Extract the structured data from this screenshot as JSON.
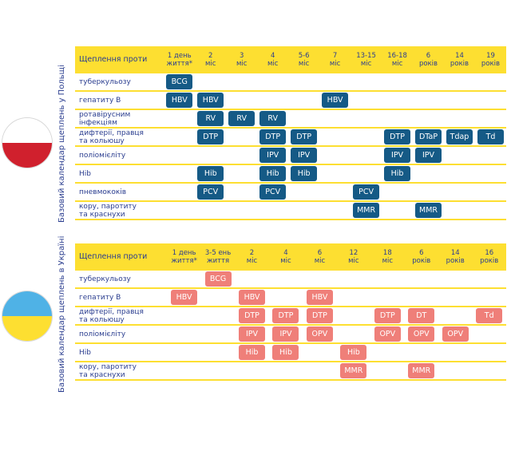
{
  "poland": {
    "side_label": "Базовий календар щеплень у Польщі",
    "flag_colors": {
      "top": "#ffffff",
      "bottom": "#d0202d"
    },
    "header_title": "Щеплення проти",
    "columns": [
      {
        "l1": "1 день",
        "l2": "життя*"
      },
      {
        "l1": "2",
        "l2": "міс"
      },
      {
        "l1": "3",
        "l2": "міс"
      },
      {
        "l1": "4",
        "l2": "міс"
      },
      {
        "l1": "5-6",
        "l2": "міс"
      },
      {
        "l1": "7",
        "l2": "міс"
      },
      {
        "l1": "13-15",
        "l2": "міс"
      },
      {
        "l1": "16-18",
        "l2": "міс"
      },
      {
        "l1": "6",
        "l2": "років"
      },
      {
        "l1": "14",
        "l2": "років"
      },
      {
        "l1": "19",
        "l2": "років"
      }
    ],
    "rows": [
      {
        "l1": "туберкульозу",
        "l2": "",
        "cells": [
          "BCG",
          "",
          "",
          "",
          "",
          "",
          "",
          "",
          "",
          "",
          ""
        ]
      },
      {
        "l1": "гепатиту В",
        "l2": "",
        "cells": [
          "HBV",
          "HBV",
          "",
          "",
          "",
          "HBV",
          "",
          "",
          "",
          "",
          ""
        ]
      },
      {
        "l1": "ротавірусним інфекціям",
        "l2": "",
        "cells": [
          "",
          "RV",
          "RV",
          "RV",
          "",
          "",
          "",
          "",
          "",
          "",
          ""
        ]
      },
      {
        "l1": "дифтерії, правця",
        "l2": "та кольюшу",
        "cells": [
          "",
          "DTP",
          "",
          "DTP",
          "DTP",
          "",
          "",
          "DTP",
          "DTaP",
          "Tdap",
          "Td"
        ]
      },
      {
        "l1": "поліомієліту",
        "l2": "",
        "cells": [
          "",
          "",
          "",
          "IPV",
          "IPV",
          "",
          "",
          "IPV",
          "IPV",
          "",
          ""
        ]
      },
      {
        "l1": "Hib",
        "l2": "",
        "cells": [
          "",
          "Hib",
          "",
          "Hib",
          "Hib",
          "",
          "",
          "Hib",
          "",
          "",
          ""
        ]
      },
      {
        "l1": "пневмококів",
        "l2": "",
        "cells": [
          "",
          "PCV",
          "",
          "PCV",
          "",
          "",
          "PCV",
          "",
          "",
          "",
          ""
        ]
      },
      {
        "l1": "кору, паротиту",
        "l2": "та краснухи",
        "cells": [
          "",
          "",
          "",
          "",
          "",
          "",
          "MMR",
          "",
          "MMR",
          "",
          ""
        ]
      }
    ]
  },
  "ukraine": {
    "side_label": "Базовий календар щеплень в Україні",
    "flag_colors": {
      "top": "#4fb2e6",
      "bottom": "#fddf31"
    },
    "header_title": "Щеплення проти",
    "columns": [
      {
        "l1": "1 день",
        "l2": "життя*"
      },
      {
        "l1": "3-5 ень",
        "l2": "життя"
      },
      {
        "l1": "2",
        "l2": "міс"
      },
      {
        "l1": "4",
        "l2": "міс"
      },
      {
        "l1": "6",
        "l2": "міс"
      },
      {
        "l1": "12",
        "l2": "міс"
      },
      {
        "l1": "18",
        "l2": "міс"
      },
      {
        "l1": "6",
        "l2": "років"
      },
      {
        "l1": "14",
        "l2": "років"
      },
      {
        "l1": "16",
        "l2": "років"
      }
    ],
    "rows": [
      {
        "l1": "туберкульозу",
        "l2": "",
        "cells": [
          "",
          "BCG",
          "",
          "",
          "",
          "",
          "",
          "",
          "",
          ""
        ]
      },
      {
        "l1": "гепатиту В",
        "l2": "",
        "cells": [
          "HBV",
          "",
          "HBV",
          "",
          "HBV",
          "",
          "",
          "",
          "",
          ""
        ]
      },
      {
        "l1": "дифтерії, правця",
        "l2": "та кольюшу",
        "cells": [
          "",
          "",
          "DTP",
          "DTP",
          "DTP",
          "",
          "DTP",
          "DT",
          "",
          "Td"
        ]
      },
      {
        "l1": "поліомієліту",
        "l2": "",
        "cells": [
          "",
          "",
          "IPV",
          "IPV",
          "OPV",
          "",
          "OPV",
          "OPV",
          "OPV",
          ""
        ]
      },
      {
        "l1": "Hib",
        "l2": "",
        "cells": [
          "",
          "",
          "Hib",
          "Hib",
          "",
          "Hib",
          "",
          "",
          "",
          ""
        ]
      },
      {
        "l1": "кору, паротиту",
        "l2": "та краснухи",
        "cells": [
          "",
          "",
          "",
          "",
          "",
          "MMR",
          "",
          "MMR",
          "",
          ""
        ]
      }
    ]
  }
}
